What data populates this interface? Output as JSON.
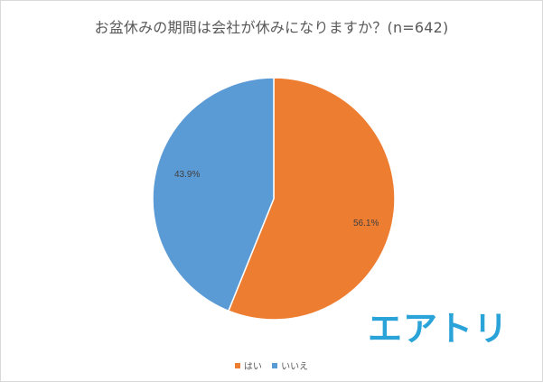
{
  "logo_text": "エアトリ",
  "colors": {
    "hai": "#ed7d31",
    "iie": "#5b9bd5",
    "logo": "#29a3d8",
    "title": "#595959"
  },
  "chart_data": {
    "type": "pie",
    "title": "お盆休みの期間は会社が休みになりますか？(n=642)",
    "categories": [
      "はい",
      "いいえ"
    ],
    "values": [
      56.1,
      43.9
    ],
    "labels": [
      "56.1%",
      "43.9%"
    ],
    "colors": [
      "#ed7d31",
      "#5b9bd5"
    ],
    "start_angle_deg": 0,
    "direction": "clockwise",
    "legend_position": "bottom"
  }
}
